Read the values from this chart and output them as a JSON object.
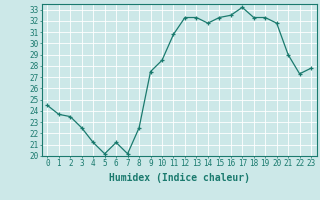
{
  "x": [
    0,
    1,
    2,
    3,
    4,
    5,
    6,
    7,
    8,
    9,
    10,
    11,
    12,
    13,
    14,
    15,
    16,
    17,
    18,
    19,
    20,
    21,
    22,
    23
  ],
  "y": [
    24.5,
    23.7,
    23.5,
    22.5,
    21.2,
    20.2,
    21.2,
    20.2,
    22.5,
    27.5,
    28.5,
    30.8,
    32.3,
    32.3,
    31.8,
    32.3,
    32.5,
    33.2,
    32.3,
    32.3,
    31.8,
    29.0,
    27.3,
    27.8
  ],
  "xlabel": "Humidex (Indice chaleur)",
  "ylim": [
    20,
    33.5
  ],
  "xlim": [
    -0.5,
    23.5
  ],
  "yticks": [
    20,
    21,
    22,
    23,
    24,
    25,
    26,
    27,
    28,
    29,
    30,
    31,
    32,
    33
  ],
  "xticks": [
    0,
    1,
    2,
    3,
    4,
    5,
    6,
    7,
    8,
    9,
    10,
    11,
    12,
    13,
    14,
    15,
    16,
    17,
    18,
    19,
    20,
    21,
    22,
    23
  ],
  "line_color": "#1a7a6e",
  "marker": "+",
  "bg_color": "#cce8e8",
  "grid_color": "#ffffff",
  "tick_label_fontsize": 5.5,
  "xlabel_fontsize": 7.0
}
